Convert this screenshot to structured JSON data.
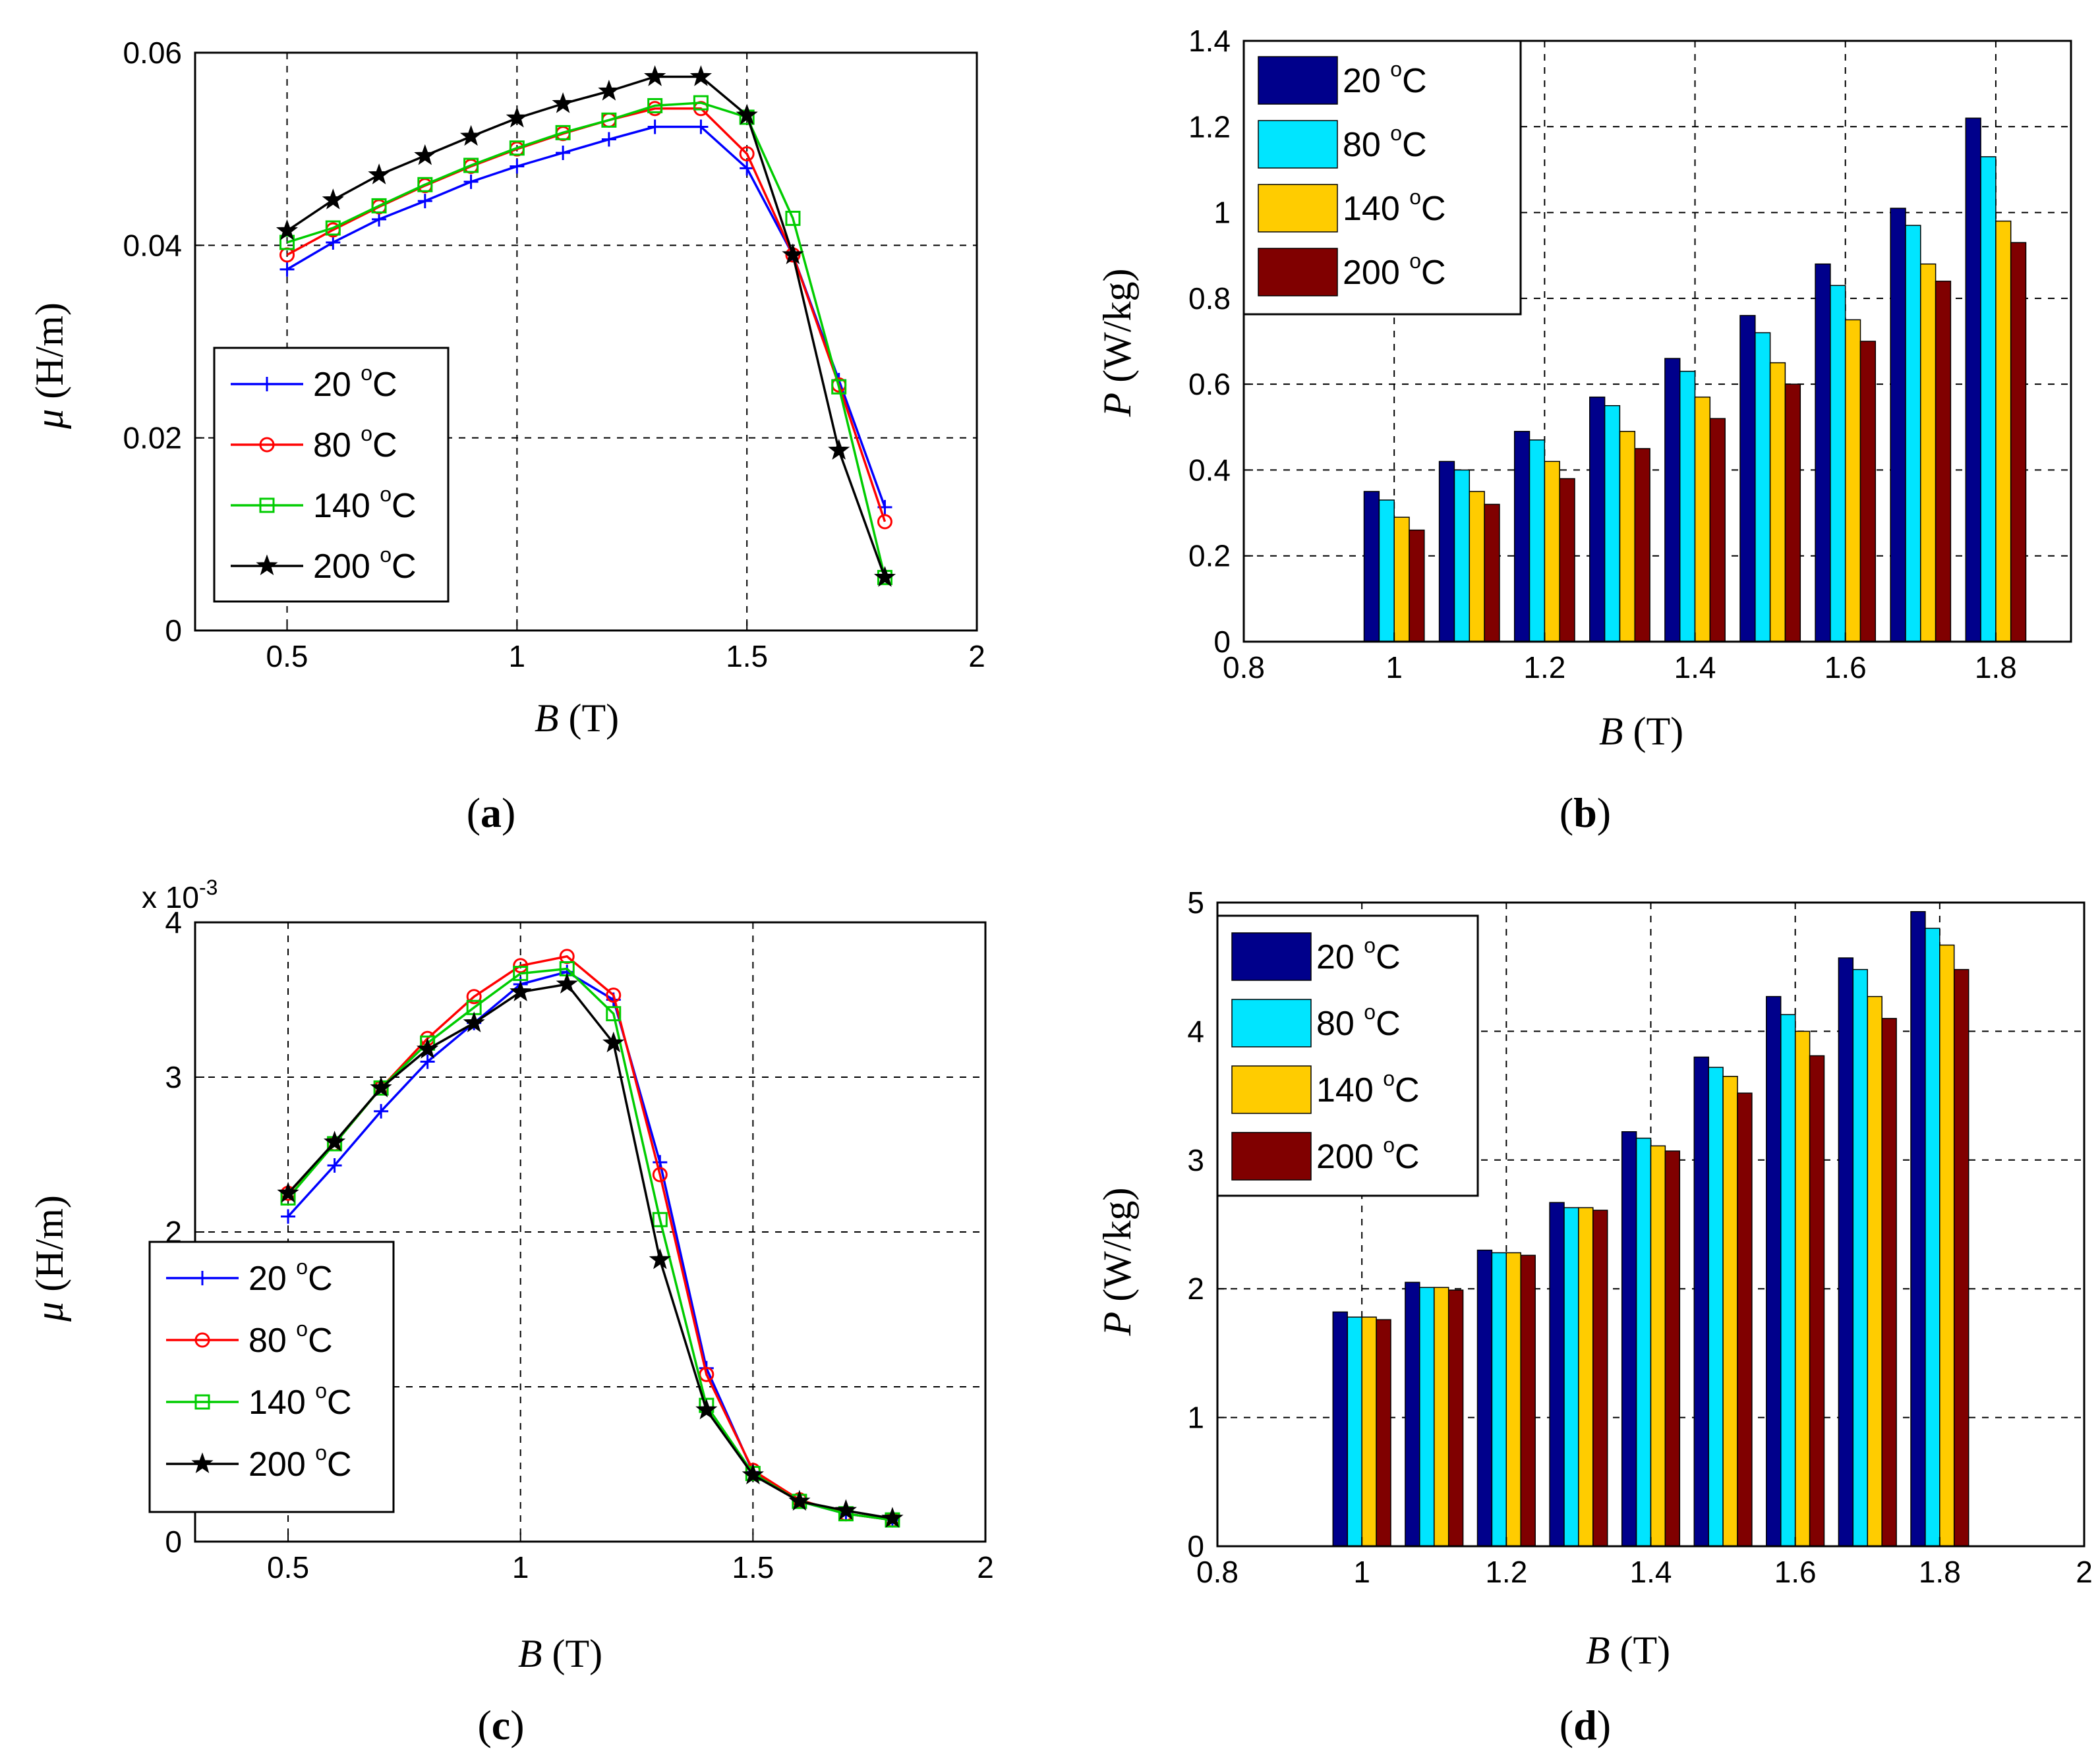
{
  "figure": {
    "panels": [
      {
        "tag_open": "(",
        "tag_letter": "a",
        "tag_close": ")"
      },
      {
        "tag_open": "(",
        "tag_letter": "b",
        "tag_close": ")"
      },
      {
        "tag_open": "(",
        "tag_letter": "c",
        "tag_close": ")"
      },
      {
        "tag_open": "(",
        "tag_letter": "d",
        "tag_close": ")"
      }
    ]
  },
  "colors": {
    "line_20": "#0000ff",
    "line_80": "#ff0000",
    "line_140": "#00cc00",
    "line_200": "#000000",
    "bar_20": "#00008b",
    "bar_80": "#00e5ff",
    "bar_140": "#ffcc00",
    "bar_200": "#800000"
  },
  "chart_data": [
    {
      "type": "line",
      "xlabel_var": "B",
      "xlabel_unit": " (T)",
      "ylabel_var": "μ",
      "ylabel_unit": " (H/m)",
      "xlim": [
        0.3,
        2
      ],
      "ylim": [
        0,
        0.06
      ],
      "xticks": [
        "0.5",
        "1",
        "1.5",
        "2"
      ],
      "xtick_values": [
        0.5,
        1,
        1.5,
        2
      ],
      "yticks": [
        "0",
        "0.02",
        "0.04",
        "0.06"
      ],
      "ytick_values": [
        0,
        0.02,
        0.04,
        0.06
      ],
      "exponent_label": "",
      "legend_position": "bottom-left",
      "x": [
        0.5,
        0.6,
        0.7,
        0.8,
        0.9,
        1.0,
        1.1,
        1.2,
        1.3,
        1.4,
        1.5,
        1.6,
        1.7,
        1.8
      ],
      "series": [
        {
          "name": "20 ",
          "sup": "o",
          "unit": "C",
          "marker": "plus",
          "values": [
            0.0375,
            0.0403,
            0.0427,
            0.0446,
            0.0466,
            0.0482,
            0.0496,
            0.051,
            0.0523,
            0.0523,
            0.048,
            0.039,
            0.026,
            0.0128
          ]
        },
        {
          "name": "80 ",
          "sup": "o",
          "unit": "C",
          "marker": "circle",
          "values": [
            0.039,
            0.0416,
            0.044,
            0.0462,
            0.0482,
            0.05,
            0.0516,
            0.053,
            0.0542,
            0.0542,
            0.0495,
            0.039,
            0.0255,
            0.0113
          ]
        },
        {
          "name": "140 ",
          "sup": "o",
          "unit": "C",
          "marker": "square",
          "values": [
            0.0403,
            0.0418,
            0.0441,
            0.0463,
            0.0483,
            0.0501,
            0.0517,
            0.053,
            0.0545,
            0.0548,
            0.0533,
            0.0428,
            0.0253,
            0.0055
          ]
        },
        {
          "name": "200 ",
          "sup": "o",
          "unit": "C",
          "marker": "star",
          "values": [
            0.0415,
            0.0447,
            0.0473,
            0.0493,
            0.0513,
            0.0532,
            0.0547,
            0.056,
            0.0575,
            0.0575,
            0.0535,
            0.039,
            0.0187,
            0.0055
          ]
        }
      ]
    },
    {
      "type": "bar",
      "xlabel_var": "B",
      "xlabel_unit": " (T)",
      "ylabel_var": "P",
      "ylabel_unit": " (W/kg)",
      "xlim": [
        0.8,
        1.9
      ],
      "ylim": [
        0,
        1.4
      ],
      "xticks": [
        "0.8",
        "1",
        "1.2",
        "1.4",
        "1.6",
        "1.8"
      ],
      "xtick_values": [
        0.8,
        1.0,
        1.2,
        1.4,
        1.6,
        1.8
      ],
      "yticks": [
        "0",
        "0.2",
        "0.4",
        "0.6",
        "0.8",
        "1",
        "1.2",
        "1.4"
      ],
      "ytick_values": [
        0,
        0.2,
        0.4,
        0.6,
        0.8,
        1.0,
        1.2,
        1.4
      ],
      "legend_position": "top-left",
      "x": [
        1.0,
        1.1,
        1.2,
        1.3,
        1.4,
        1.5,
        1.6,
        1.7,
        1.8
      ],
      "series": [
        {
          "name": "20 ",
          "sup": "o",
          "unit": "C",
          "values": [
            0.35,
            0.42,
            0.49,
            0.57,
            0.66,
            0.76,
            0.88,
            1.01,
            1.22
          ]
        },
        {
          "name": "80 ",
          "sup": "o",
          "unit": "C",
          "values": [
            0.33,
            0.4,
            0.47,
            0.55,
            0.63,
            0.72,
            0.83,
            0.97,
            1.13
          ]
        },
        {
          "name": "140 ",
          "sup": "o",
          "unit": "C",
          "values": [
            0.29,
            0.35,
            0.42,
            0.49,
            0.57,
            0.65,
            0.75,
            0.88,
            0.98
          ]
        },
        {
          "name": "200 ",
          "sup": "o",
          "unit": "C",
          "values": [
            0.26,
            0.32,
            0.38,
            0.45,
            0.52,
            0.6,
            0.7,
            0.84,
            0.93
          ]
        }
      ]
    },
    {
      "type": "line",
      "xlabel_var": "B",
      "xlabel_unit": " (T)",
      "ylabel_var": "μ",
      "ylabel_unit": " (H/m)",
      "xlim": [
        0.3,
        2
      ],
      "ylim": [
        0,
        4
      ],
      "xticks": [
        "0.5",
        "1",
        "1.5",
        "2"
      ],
      "xtick_values": [
        0.5,
        1,
        1.5,
        2
      ],
      "yticks": [
        "0",
        "1",
        "2",
        "3",
        "4"
      ],
      "ytick_values": [
        0,
        1,
        2,
        3,
        4
      ],
      "exponent_label": "x 10",
      "exponent_sup": "-3",
      "legend_position": "bottom-left",
      "x": [
        0.5,
        0.6,
        0.7,
        0.8,
        0.9,
        1.0,
        1.1,
        1.2,
        1.3,
        1.4,
        1.5,
        1.6,
        1.7,
        1.8
      ],
      "series": [
        {
          "name": "20 ",
          "sup": "o",
          "unit": "C",
          "marker": "plus",
          "values": [
            2.1,
            2.43,
            2.78,
            3.1,
            3.35,
            3.6,
            3.68,
            3.5,
            2.45,
            1.12,
            0.45,
            0.26,
            0.18,
            0.14
          ]
        },
        {
          "name": "80 ",
          "sup": "o",
          "unit": "C",
          "marker": "circle",
          "values": [
            2.25,
            2.57,
            2.93,
            3.25,
            3.52,
            3.72,
            3.78,
            3.53,
            2.37,
            1.08,
            0.46,
            0.27,
            0.18,
            0.14
          ]
        },
        {
          "name": "140 ",
          "sup": "o",
          "unit": "C",
          "marker": "square",
          "values": [
            2.22,
            2.57,
            2.93,
            3.22,
            3.45,
            3.67,
            3.7,
            3.41,
            2.08,
            0.88,
            0.44,
            0.26,
            0.18,
            0.14
          ]
        },
        {
          "name": "200 ",
          "sup": "o",
          "unit": "C",
          "marker": "star",
          "values": [
            2.25,
            2.58,
            2.93,
            3.18,
            3.35,
            3.55,
            3.6,
            3.22,
            1.82,
            0.85,
            0.43,
            0.26,
            0.2,
            0.15
          ]
        }
      ]
    },
    {
      "type": "bar",
      "xlabel_var": "B",
      "xlabel_unit": " (T)",
      "ylabel_var": "P",
      "ylabel_unit": " (W/kg)",
      "xlim": [
        0.8,
        2.0
      ],
      "ylim": [
        0,
        5
      ],
      "xticks": [
        "0.8",
        "1",
        "1.2",
        "1.4",
        "1.6",
        "1.8",
        "2"
      ],
      "xtick_values": [
        0.8,
        1.0,
        1.2,
        1.4,
        1.6,
        1.8,
        2.0
      ],
      "yticks": [
        "0",
        "1",
        "2",
        "3",
        "4",
        "5"
      ],
      "ytick_values": [
        0,
        1,
        2,
        3,
        4,
        5
      ],
      "legend_position": "top-left",
      "x": [
        1.0,
        1.1,
        1.2,
        1.3,
        1.4,
        1.5,
        1.6,
        1.7,
        1.8
      ],
      "series": [
        {
          "name": "20 ",
          "sup": "o",
          "unit": "C",
          "values": [
            1.82,
            2.05,
            2.3,
            2.67,
            3.22,
            3.8,
            4.27,
            4.57,
            4.93
          ]
        },
        {
          "name": "80 ",
          "sup": "o",
          "unit": "C",
          "values": [
            1.78,
            2.01,
            2.28,
            2.63,
            3.17,
            3.72,
            4.13,
            4.48,
            4.8
          ]
        },
        {
          "name": "140 ",
          "sup": "o",
          "unit": "C",
          "values": [
            1.78,
            2.01,
            2.28,
            2.63,
            3.11,
            3.65,
            4.0,
            4.27,
            4.67
          ]
        },
        {
          "name": "200 ",
          "sup": "o",
          "unit": "C",
          "values": [
            1.76,
            1.99,
            2.26,
            2.61,
            3.07,
            3.52,
            3.81,
            4.1,
            4.48
          ]
        }
      ]
    }
  ]
}
